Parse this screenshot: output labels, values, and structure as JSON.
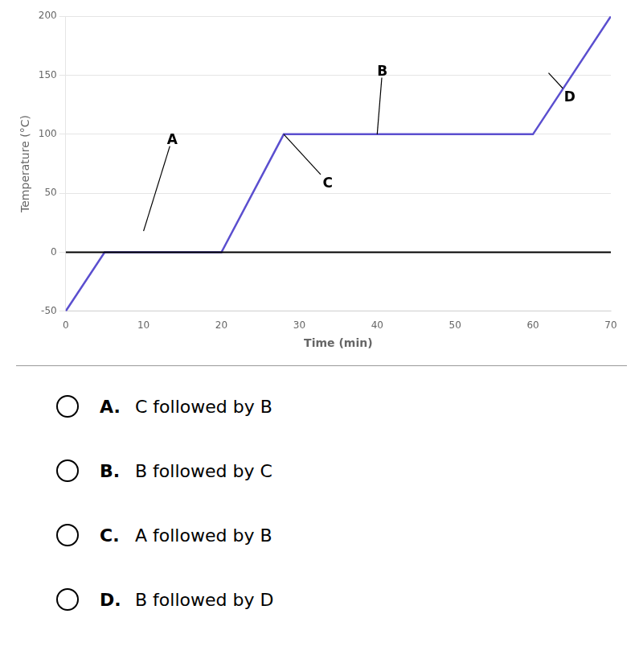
{
  "chart_data": {
    "type": "line",
    "x_label": "Time (min)",
    "y_label": "Temperature (°C)",
    "x": [
      0,
      5,
      20,
      28,
      60,
      70
    ],
    "values": [
      -50,
      0,
      0,
      100,
      100,
      200
    ],
    "color": "#5b4fcf",
    "xlim": [
      0,
      70
    ],
    "ylim": [
      -50,
      200
    ],
    "xticks": [
      0,
      10,
      20,
      30,
      40,
      50,
      60,
      70
    ],
    "yticks": [
      -50,
      0,
      50,
      100,
      150,
      200
    ],
    "grid": "y",
    "hline": 0,
    "annotations": [
      {
        "text": "A",
        "x": 10,
        "y": 18,
        "text_x": 13,
        "text_y": 92
      },
      {
        "text": "B",
        "x": 40,
        "y": 100,
        "text_x": 40,
        "text_y": 150
      },
      {
        "text": "C",
        "x": 28,
        "y": 100,
        "text_x": 33,
        "text_y": 55
      },
      {
        "text": "D",
        "x": 62,
        "y": 152,
        "text_x": 64,
        "text_y": 128
      }
    ],
    "options": [
      {
        "letter": "A.",
        "text": "C followed by B"
      },
      {
        "letter": "B.",
        "text": "B followed by C"
      },
      {
        "letter": "C.",
        "text": "A followed by B"
      },
      {
        "letter": "D.",
        "text": "B followed by D"
      }
    ]
  }
}
